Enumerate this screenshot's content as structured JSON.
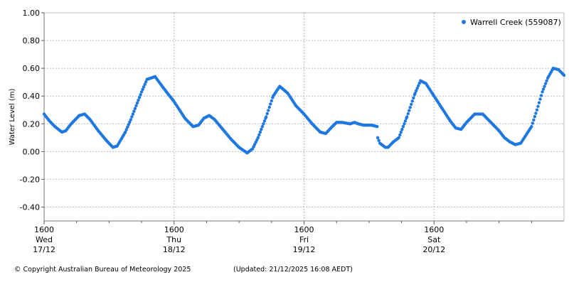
{
  "footer": {
    "copyright": "© Copyright Australian Bureau of Meteorology 2025",
    "updated": "(Updated: 21/12/2025 16:08 AEDT)"
  },
  "chart_data": {
    "type": "scatter",
    "title": "",
    "xlabel": "",
    "ylabel": "Water Level (m)",
    "ylim": [
      -0.5,
      1.0
    ],
    "yticks": [
      -0.4,
      -0.2,
      0.0,
      0.2,
      0.4,
      0.6,
      0.8,
      1.0
    ],
    "ytick_labels": [
      "-0.40",
      "-0.20",
      "0.00",
      "0.20",
      "0.40",
      "0.60",
      "0.80",
      "1.00"
    ],
    "x_unit": "hours since Wed 17/12 16:00",
    "xlim": [
      0,
      96
    ],
    "xticks": [
      {
        "x": 0,
        "time": "1600",
        "day": "Wed",
        "date": "17/12"
      },
      {
        "x": 24,
        "time": "1600",
        "day": "Thu",
        "date": "18/12"
      },
      {
        "x": 48,
        "time": "1600",
        "day": "Fri",
        "date": "19/12"
      },
      {
        "x": 72,
        "time": "1600",
        "day": "Sat",
        "date": "20/12"
      }
    ],
    "grid": true,
    "legend_position": "top-right",
    "color": "#1f78e0",
    "series": [
      {
        "name": "Warrell Creek (559087)",
        "x": [
          0,
          1,
          2,
          3.3,
          4,
          5,
          6.5,
          7.5,
          8.5,
          10,
          11.5,
          12.7,
          13.5,
          15,
          16,
          17,
          18,
          19,
          20.5,
          22,
          24,
          26,
          27.5,
          28.5,
          29.5,
          30.5,
          31.5,
          33,
          34.5,
          36,
          37.5,
          38.5,
          39.5,
          41,
          42.3,
          43.5,
          45,
          46.5,
          48,
          49.5,
          51,
          52,
          53.2,
          54,
          55,
          56.5,
          57.3,
          58,
          59,
          60.5,
          61.5,
          61.6,
          62,
          63,
          63.5,
          64.5,
          65.5,
          67,
          68.5,
          69.5,
          70.5,
          72,
          73.5,
          75,
          76,
          77,
          78,
          79.5,
          81,
          82.5,
          84,
          85,
          86,
          87,
          88,
          89,
          90,
          91,
          92,
          93,
          94,
          95,
          96
        ],
        "y": [
          0.27,
          0.22,
          0.18,
          0.14,
          0.15,
          0.2,
          0.26,
          0.27,
          0.23,
          0.15,
          0.08,
          0.03,
          0.04,
          0.14,
          0.23,
          0.33,
          0.43,
          0.52,
          0.54,
          0.46,
          0.36,
          0.24,
          0.18,
          0.19,
          0.24,
          0.26,
          0.23,
          0.16,
          0.09,
          0.03,
          -0.01,
          0.02,
          0.1,
          0.25,
          0.4,
          0.47,
          0.42,
          0.33,
          0.27,
          0.2,
          0.14,
          0.13,
          0.18,
          0.21,
          0.21,
          0.2,
          0.21,
          0.2,
          0.19,
          0.19,
          0.18,
          0.1,
          0.06,
          0.03,
          0.03,
          0.07,
          0.1,
          0.25,
          0.42,
          0.51,
          0.49,
          0.4,
          0.31,
          0.22,
          0.17,
          0.16,
          0.21,
          0.27,
          0.27,
          0.21,
          0.15,
          0.1,
          0.07,
          0.05,
          0.06,
          0.12,
          0.18,
          0.3,
          0.43,
          0.53,
          0.6,
          0.59,
          0.55
        ]
      }
    ]
  }
}
